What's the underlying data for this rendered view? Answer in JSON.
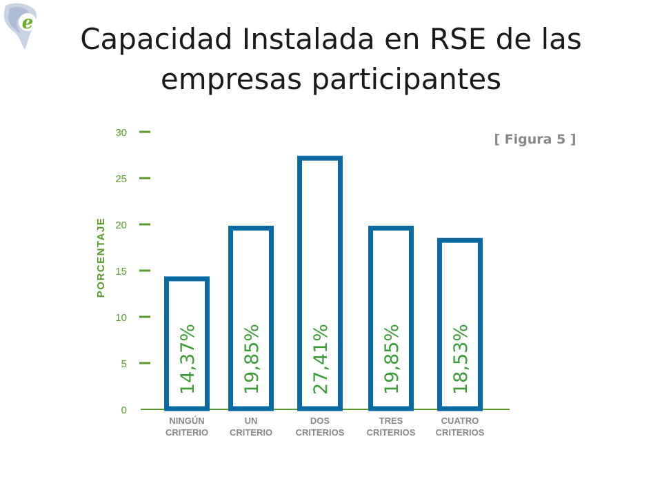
{
  "slide": {
    "title_line1": "Capacidad Instalada en RSE de las",
    "title_line2": "empresas participantes",
    "logo_icon": "globe-e-logo-icon"
  },
  "chart_data": {
    "type": "bar",
    "figure_label": "[ Figura 5 ]",
    "ylabel": "PORCENTAJE",
    "xlabel": "",
    "ylim": [
      0,
      30
    ],
    "yticks": [
      0,
      5,
      10,
      15,
      20,
      25,
      30
    ],
    "categories": [
      [
        "NINGÚN",
        "CRITERIO"
      ],
      [
        "UN",
        "CRITERIO"
      ],
      [
        "DOS",
        "CRITERIOS"
      ],
      [
        "TRES",
        "CRITERIOS"
      ],
      [
        "CUATRO",
        "CRITERIOS"
      ]
    ],
    "values": [
      14.37,
      19.85,
      27.41,
      19.85,
      18.53
    ],
    "data_labels": [
      "14,37%",
      "19,85%",
      "27,41%",
      "19,85%",
      "18,53%"
    ],
    "grid": false,
    "colors": {
      "bar_outline": "#0a6aa1",
      "accent_green": "#5a9a2c",
      "label_green": "#3e9a3a",
      "category_text": "#888888"
    }
  }
}
